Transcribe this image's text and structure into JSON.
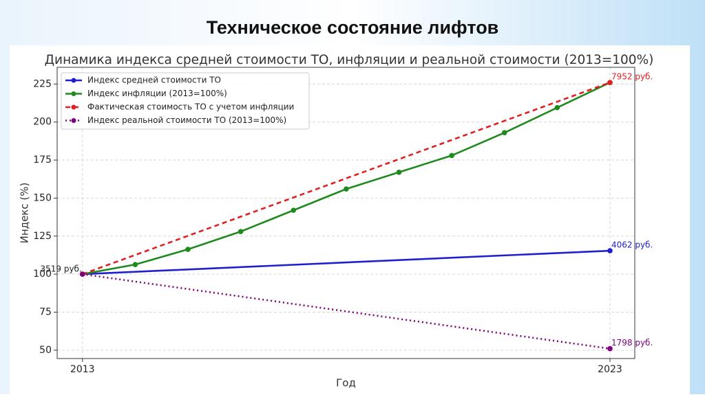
{
  "slide_title": "Техническое состояние лифтов",
  "chart_data": {
    "type": "line",
    "title": "Динамика индекса средней стоимости ТО, инфляции и реальной стоимости (2013=100%)",
    "x_label": "Год",
    "y_label": "Индекс (%)",
    "xlim": [
      2012.52,
      2023.47
    ],
    "xticks": [
      2013,
      2023
    ],
    "ylim": [
      44.5,
      236
    ],
    "yticks": [
      50,
      75,
      100,
      125,
      150,
      175,
      200,
      225
    ],
    "grid": true,
    "legend": "upper left",
    "series": [
      {
        "name": "Индекс средней стоимости ТО",
        "color": "#1f1fd0",
        "linestyle": "solid",
        "x": [
          2013,
          2023
        ],
        "values": [
          100,
          115.4
        ],
        "start_label": "3519 руб.",
        "end_label": "4062 руб."
      },
      {
        "name": "Индекс инфляции (2013=100%)",
        "color": "#1e8a1e",
        "linestyle": "solid",
        "x": [
          2013,
          2014,
          2015,
          2016,
          2017,
          2018,
          2019,
          2020,
          2021,
          2022,
          2023
        ],
        "values": [
          100,
          106.3,
          116.3,
          128,
          142,
          156,
          167,
          178,
          193,
          209.5,
          226
        ]
      },
      {
        "name": "Фактическая стоимость ТО с учетом инфляции",
        "color": "#e02020",
        "linestyle": "dashed",
        "x": [
          2013,
          2023
        ],
        "values": [
          100,
          226
        ],
        "end_label": "7952 руб."
      },
      {
        "name": "Индекс реальной стоимости ТО (2013=100%)",
        "color": "#800080",
        "linestyle": "dotted",
        "x": [
          2013,
          2023
        ],
        "values": [
          100,
          51
        ],
        "end_label": "1798 руб."
      }
    ]
  }
}
